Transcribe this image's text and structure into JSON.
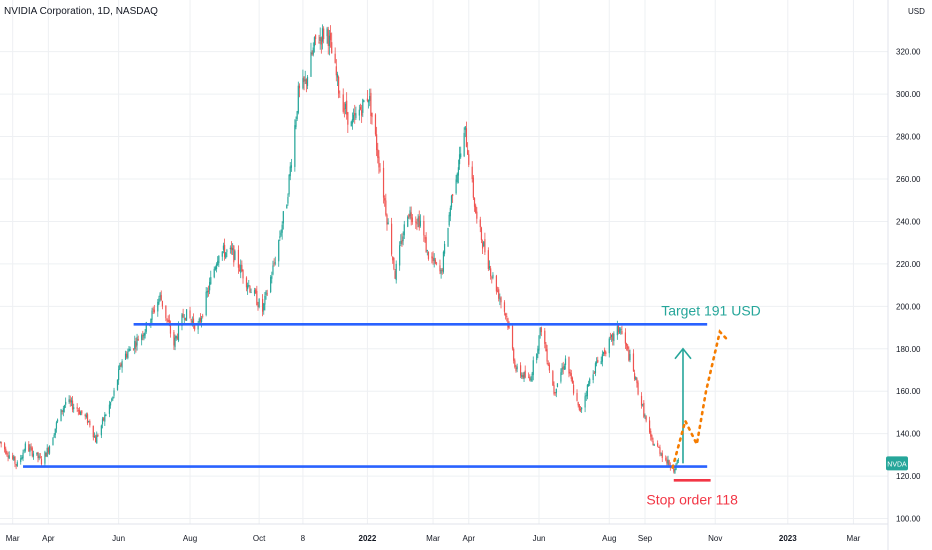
{
  "header": {
    "symbol_title": "NVIDIA Corporation, 1D, NASDAQ"
  },
  "colors": {
    "up": "#26a69a",
    "down": "#ef5350",
    "level_line": "#2962ff",
    "target_text": "#26a69a",
    "stop": "#f23645",
    "projection": "#f57c00",
    "grid": "#eef0f3",
    "axis_text": "#131722",
    "ticker_badge": "#26a69a"
  },
  "chart_data": {
    "type": "candlestick",
    "title": "NVIDIA Corporation, 1D, NASDAQ",
    "currency_label": "USD",
    "ticker_badge": "NVDA",
    "ticker_badge_price": 126,
    "ylim": [
      96,
      342
    ],
    "y_ticks": [
      100,
      120,
      140,
      160,
      180,
      200,
      220,
      240,
      260,
      280,
      300,
      320
    ],
    "y_tick_labels": [
      "100.00",
      "120.00",
      "140.00",
      "160.00",
      "180.00",
      "200.00",
      "220.00",
      "240.00",
      "260.00",
      "280.00",
      "300.00",
      "320.00"
    ],
    "x_range": [
      "2021-02-18",
      "2023-03-31"
    ],
    "x_ticks": [
      {
        "date": "2021-03-01",
        "label": "Mar"
      },
      {
        "date": "2021-04-01",
        "label": "Apr"
      },
      {
        "date": "2021-06-01",
        "label": "Jun"
      },
      {
        "date": "2021-08-02",
        "label": "Aug"
      },
      {
        "date": "2021-10-01",
        "label": "Oct"
      },
      {
        "date": "2021-11-08",
        "label": "8"
      },
      {
        "date": "2022-01-03",
        "label": "2022"
      },
      {
        "date": "2022-03-01",
        "label": "Mar"
      },
      {
        "date": "2022-04-01",
        "label": "Apr"
      },
      {
        "date": "2022-06-01",
        "label": "Jun"
      },
      {
        "date": "2022-08-01",
        "label": "Aug"
      },
      {
        "date": "2022-09-01",
        "label": "Sep"
      },
      {
        "date": "2022-11-01",
        "label": "Nov"
      },
      {
        "date": "2023-01-03",
        "label": "2023"
      },
      {
        "date": "2023-03-01",
        "label": "Mar"
      }
    ],
    "price_path": [
      [
        "2021-02-18",
        136
      ],
      [
        "2021-02-26",
        130
      ],
      [
        "2021-03-05",
        125
      ],
      [
        "2021-03-12",
        134
      ],
      [
        "2021-03-19",
        131
      ],
      [
        "2021-03-26",
        127
      ],
      [
        "2021-04-01",
        133
      ],
      [
        "2021-04-09",
        146
      ],
      [
        "2021-04-16",
        155
      ],
      [
        "2021-04-26",
        152
      ],
      [
        "2021-05-07",
        145
      ],
      [
        "2021-05-12",
        137
      ],
      [
        "2021-05-20",
        148
      ],
      [
        "2021-05-27",
        157
      ],
      [
        "2021-06-04",
        175
      ],
      [
        "2021-06-14",
        182
      ],
      [
        "2021-06-25",
        190
      ],
      [
        "2021-07-07",
        205
      ],
      [
        "2021-07-19",
        182
      ],
      [
        "2021-07-28",
        197
      ],
      [
        "2021-08-09",
        190
      ],
      [
        "2021-08-19",
        210
      ],
      [
        "2021-08-27",
        226
      ],
      [
        "2021-09-08",
        225
      ],
      [
        "2021-09-20",
        212
      ],
      [
        "2021-10-04",
        198
      ],
      [
        "2021-10-14",
        220
      ],
      [
        "2021-10-25",
        250
      ],
      [
        "2021-11-04",
        300
      ],
      [
        "2021-11-10",
        305
      ],
      [
        "2021-11-19",
        325
      ],
      [
        "2021-11-29",
        330
      ],
      [
        "2021-12-10",
        300
      ],
      [
        "2021-12-20",
        285
      ],
      [
        "2022-01-04",
        300
      ],
      [
        "2022-01-14",
        265
      ],
      [
        "2022-01-27",
        215
      ],
      [
        "2022-02-07",
        245
      ],
      [
        "2022-02-18",
        240
      ],
      [
        "2022-02-24",
        225
      ],
      [
        "2022-03-08",
        215
      ],
      [
        "2022-03-18",
        255
      ],
      [
        "2022-03-29",
        282
      ],
      [
        "2022-04-08",
        240
      ],
      [
        "2022-04-21",
        215
      ],
      [
        "2022-05-04",
        195
      ],
      [
        "2022-05-12",
        170
      ],
      [
        "2022-05-24",
        165
      ],
      [
        "2022-06-03",
        190
      ],
      [
        "2022-06-14",
        160
      ],
      [
        "2022-06-24",
        175
      ],
      [
        "2022-07-06",
        150
      ],
      [
        "2022-07-18",
        170
      ],
      [
        "2022-07-29",
        180
      ],
      [
        "2022-08-10",
        190
      ],
      [
        "2022-08-19",
        175
      ],
      [
        "2022-08-30",
        152
      ],
      [
        "2022-09-06",
        137
      ],
      [
        "2022-09-14",
        132
      ],
      [
        "2022-09-21",
        126
      ],
      [
        "2022-09-26",
        124
      ],
      [
        "2022-10-03",
        128
      ]
    ],
    "levels": [
      {
        "name": "resistance",
        "price": 191.5,
        "start": "2021-06-14",
        "end": "2022-10-25"
      },
      {
        "name": "support",
        "price": 124.5,
        "start": "2021-03-10",
        "end": "2022-10-25"
      }
    ],
    "stop_order": {
      "price": 118,
      "start": "2022-09-26",
      "end": "2022-10-28",
      "label": "Stop order 118"
    },
    "target": {
      "price": 191,
      "label": "Target 191 USD",
      "arrow_date": "2022-10-04",
      "arrow_from": 126,
      "arrow_to": 180
    },
    "projection": [
      [
        "2022-09-25",
        124
      ],
      [
        "2022-10-06",
        146
      ],
      [
        "2022-10-16",
        135
      ],
      [
        "2022-10-24",
        160
      ],
      [
        "2022-11-05",
        188
      ],
      [
        "2022-11-12",
        184
      ]
    ]
  }
}
